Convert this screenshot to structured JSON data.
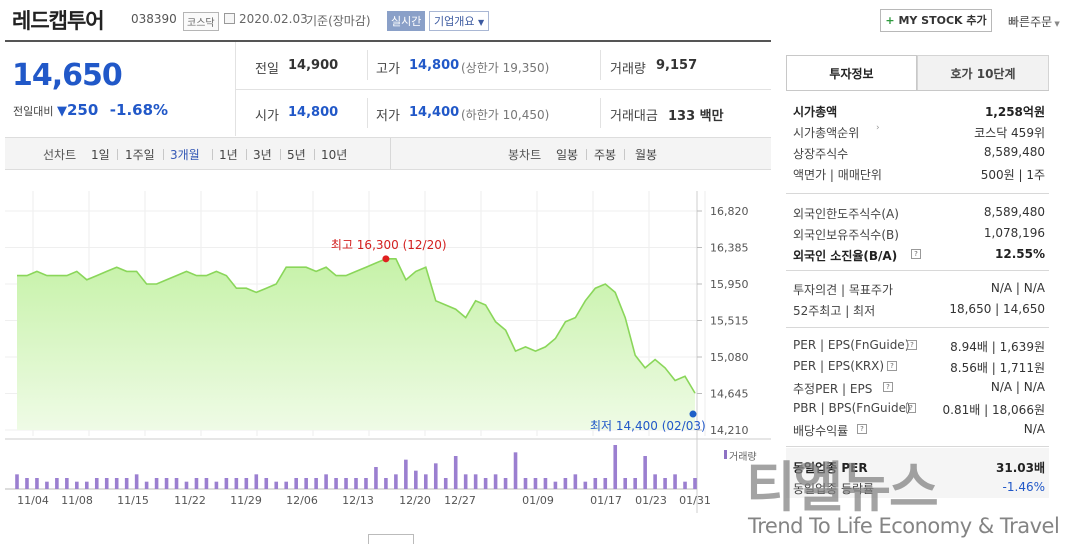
{
  "header": {
    "name": "레드캡투어",
    "code": "038390",
    "market_tag": "코스닥",
    "date": "2020.02.03",
    "basis": "기준(장마감)",
    "realtime": "실시간",
    "company_info": "기업개요",
    "my_stock": "MY STOCK 추가",
    "quick_order": "빠른주문"
  },
  "quote": {
    "price": "14,650",
    "change_label": "전일대비",
    "change": "250",
    "change_pct": "-1.68%",
    "prev_label": "전일",
    "prev": "14,900",
    "high_label": "고가",
    "high": "14,800",
    "upper_label": "(상한가",
    "upper": "19,350)",
    "volume_label": "거래량",
    "volume": "9,157",
    "open_label": "시가",
    "open": "14,800",
    "low_label": "저가",
    "low": "14,400",
    "lower_label": "(하한가",
    "lower": "10,450)",
    "amount_label": "거래대금",
    "amount": "133 백만"
  },
  "period_bar": {
    "line_chart": "선차트",
    "periods": [
      "1일",
      "1주일",
      "3개월",
      "1년",
      "3년",
      "5년",
      "10년"
    ],
    "active": "3개월",
    "candle_chart": "봉차트",
    "candles": [
      "일봉",
      "주봉",
      "월봉"
    ]
  },
  "chart_data": {
    "type": "area",
    "ylim": [
      14210,
      16820
    ],
    "y_ticks": [
      "16,820",
      "16,385",
      "15,950",
      "15,515",
      "15,080",
      "14,645",
      "14,210"
    ],
    "x_ticks": [
      "11/04",
      "11/08",
      "11/15",
      "11/22",
      "11/29",
      "12/06",
      "12/13",
      "12/20",
      "12/27",
      "01/09",
      "01/17",
      "01/23",
      "01/31"
    ],
    "high_annotation": "최고 16,300 (12/20)",
    "low_annotation": "최저 14,400 (02/03)",
    "volume_label": "거래량",
    "series": [
      {
        "values": [
          16050,
          16050,
          16100,
          16050,
          16050,
          16050,
          16100,
          16000,
          16050,
          16100,
          16150,
          16100,
          16100,
          15950,
          15950,
          16000,
          16050,
          16100,
          16050,
          16050,
          16100,
          16050,
          15900,
          15900,
          15850,
          15900,
          15950,
          16150,
          16150,
          16150,
          16100,
          16150,
          16050,
          16050,
          16100,
          16150,
          16200,
          16250,
          16250,
          16000,
          16100,
          16150,
          15750,
          15700,
          15650,
          15550,
          15750,
          15700,
          15500,
          15400,
          15150,
          15200,
          15150,
          15200,
          15300,
          15500,
          15550,
          15750,
          15900,
          15950,
          15850,
          15550,
          15100,
          14950,
          15050,
          14950,
          14800,
          14850,
          14650
        ]
      },
      {
        "volume": [
          4,
          3,
          3,
          2,
          3,
          3,
          2,
          2,
          3,
          3,
          3,
          3,
          4,
          2,
          3,
          3,
          3,
          2,
          3,
          3,
          2,
          3,
          3,
          3,
          4,
          3,
          2,
          2,
          3,
          3,
          3,
          4,
          3,
          3,
          3,
          3,
          6,
          3,
          4,
          8,
          5,
          4,
          7,
          3,
          9,
          4,
          4,
          3,
          4,
          3,
          10,
          3,
          3,
          3,
          2,
          3,
          4,
          2,
          3,
          3,
          12,
          3,
          3,
          9,
          4,
          3,
          4,
          2,
          3
        ]
      }
    ]
  },
  "right_panel": {
    "tabs": [
      "투자정보",
      "호가 10단계"
    ],
    "rows1": [
      {
        "l": "시가총액",
        "r": "1,258억원",
        "bold": true
      },
      {
        "l": "시가총액순위",
        "r": "코스닥 459위",
        "arrow": true
      },
      {
        "l": "상장주식수",
        "r": "8,589,480"
      },
      {
        "l": "액면가 | 매매단위",
        "r": "500원 | 1주"
      }
    ],
    "rows2": [
      {
        "l": "외국인한도주식수(A)",
        "r": "8,589,480"
      },
      {
        "l": "외국인보유주식수(B)",
        "r": "1,078,196"
      },
      {
        "l": "외국인 소진율(B/A)",
        "r": "12.55%",
        "bold": true,
        "info": true
      }
    ],
    "rows3": [
      {
        "l": "투자의견 | 목표주가",
        "r": "N/A | N/A"
      },
      {
        "l": "52주최고 | 최저",
        "r": "18,650 | 14,650"
      }
    ],
    "rows4": [
      {
        "l": "PER | EPS(FnGuide)",
        "r": "8.94배 | 1,639원",
        "info": true
      },
      {
        "l": "PER | EPS(KRX)",
        "r": "8.56배 | 1,711원",
        "info": true
      },
      {
        "l": "추정PER | EPS",
        "r": "N/A | N/A",
        "info": true
      },
      {
        "l": "PBR | BPS(FnGuide)",
        "r": "0.81배 | 18,066원",
        "info": true
      },
      {
        "l": "배당수익률",
        "r": "N/A",
        "info": true
      }
    ],
    "rows5": [
      {
        "l": "동일업종 PER",
        "r": "31.03배",
        "bold": true
      },
      {
        "l": "동일업종 등락률",
        "r": "-1.46%",
        "blue": true
      }
    ]
  },
  "watermark": {
    "title": "티엘뉴스",
    "subtitle": "Trend To Life Economy & Travel"
  }
}
